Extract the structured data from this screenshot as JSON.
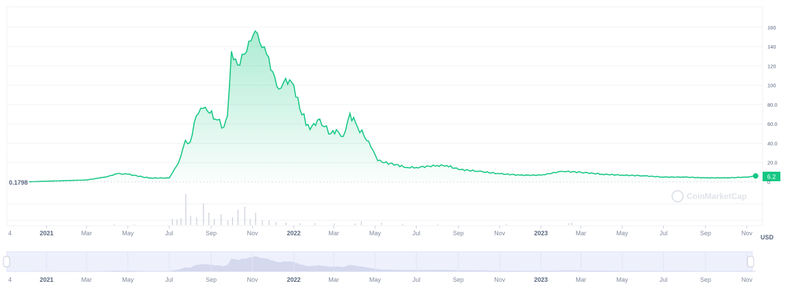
{
  "chart_data": {
    "type": "area",
    "currency_label": "USD",
    "watermark": "CoinMarketCap",
    "start_label": "0.1798",
    "current_value_label": "6.2",
    "ylim": [
      0,
      170
    ],
    "y_ticks": [
      "0",
      "20.0",
      "40.0",
      "60.0",
      "80.0",
      "100",
      "120",
      "140",
      "160"
    ],
    "y_tick_values": [
      0,
      20,
      40,
      60,
      80,
      100,
      120,
      140,
      160
    ],
    "x_ticks": [
      {
        "label": "4",
        "date": "2020-12-06",
        "bold": false
      },
      {
        "label": "2021",
        "date": "2021-01-01",
        "bold": true
      },
      {
        "label": "Mar",
        "date": "2021-03-01",
        "bold": false
      },
      {
        "label": "May",
        "date": "2021-05-01",
        "bold": false
      },
      {
        "label": "Jul",
        "date": "2021-07-01",
        "bold": false
      },
      {
        "label": "Sep",
        "date": "2021-09-01",
        "bold": false
      },
      {
        "label": "Nov",
        "date": "2021-11-01",
        "bold": false
      },
      {
        "label": "2022",
        "date": "2022-01-01",
        "bold": true
      },
      {
        "label": "Mar",
        "date": "2022-03-01",
        "bold": false
      },
      {
        "label": "May",
        "date": "2022-05-01",
        "bold": false
      },
      {
        "label": "Jul",
        "date": "2022-07-01",
        "bold": false
      },
      {
        "label": "Sep",
        "date": "2022-09-01",
        "bold": false
      },
      {
        "label": "Nov",
        "date": "2022-11-01",
        "bold": false
      },
      {
        "label": "2023",
        "date": "2023-01-01",
        "bold": true
      },
      {
        "label": "Mar",
        "date": "2023-03-01",
        "bold": false
      },
      {
        "label": "May",
        "date": "2023-05-01",
        "bold": false
      },
      {
        "label": "Jul",
        "date": "2023-07-01",
        "bold": false
      },
      {
        "label": "Sep",
        "date": "2023-09-01",
        "bold": false
      },
      {
        "label": "Nov",
        "date": "2023-11-01",
        "bold": false
      }
    ],
    "line_color": "#16c784",
    "volume_color": "#c9cdd8",
    "navigator_color": "#e9ecfb",
    "series": [
      {
        "dates": [
          "2020-12-06",
          "2021-03-01",
          "2021-04-01",
          "2021-04-15",
          "2021-05-01",
          "2021-06-01",
          "2021-07-01",
          "2021-07-15",
          "2021-07-25",
          "2021-08-01",
          "2021-08-10",
          "2021-08-20",
          "2021-08-30",
          "2021-09-10",
          "2021-09-20",
          "2021-09-25",
          "2021-10-01",
          "2021-10-10",
          "2021-10-20",
          "2021-10-30",
          "2021-11-05",
          "2021-11-15",
          "2021-11-22",
          "2021-12-01",
          "2021-12-10",
          "2021-12-20",
          "2022-01-01",
          "2022-01-10",
          "2022-01-25",
          "2022-02-05",
          "2022-02-15",
          "2022-02-25",
          "2022-03-05",
          "2022-03-15",
          "2022-03-25",
          "2022-04-05",
          "2022-04-15",
          "2022-04-25",
          "2022-05-05",
          "2022-05-15",
          "2022-06-01",
          "2022-06-15",
          "2022-07-01",
          "2022-08-01",
          "2022-08-15",
          "2022-09-01",
          "2022-10-01",
          "2022-11-01",
          "2022-12-01",
          "2023-01-01",
          "2023-02-01",
          "2023-03-01",
          "2023-04-01",
          "2023-05-01",
          "2023-06-01",
          "2023-07-01",
          "2023-08-01",
          "2023-09-01",
          "2023-10-01",
          "2023-11-01",
          "2023-11-14"
        ],
        "values": [
          0.18,
          2,
          5.5,
          8.5,
          8,
          4,
          4,
          20,
          43,
          41,
          68,
          76,
          71,
          64,
          57,
          68,
          135,
          121,
          132,
          146,
          156,
          139,
          132,
          114,
          96,
          107,
          100,
          75,
          54,
          64,
          57,
          50,
          54,
          47,
          71,
          57,
          47,
          36,
          22,
          20,
          18,
          15,
          15,
          17,
          17,
          13,
          11,
          8.5,
          7,
          7,
          11,
          10,
          8,
          7,
          6.4,
          5,
          5,
          4.2,
          4.2,
          5,
          6.2
        ]
      }
    ],
    "volume": {
      "dates": [
        "2021-04-10",
        "2021-05-10",
        "2021-07-05",
        "2021-07-12",
        "2021-07-18",
        "2021-07-25",
        "2021-08-01",
        "2021-08-10",
        "2021-08-20",
        "2021-08-28",
        "2021-09-05",
        "2021-09-15",
        "2021-09-25",
        "2021-10-02",
        "2021-10-10",
        "2021-10-20",
        "2021-10-28",
        "2021-11-05",
        "2021-11-15",
        "2021-11-25",
        "2021-12-05",
        "2021-12-20",
        "2022-01-10",
        "2022-02-01",
        "2022-03-01",
        "2022-04-01",
        "2022-04-10",
        "2022-05-10",
        "2022-06-10",
        "2022-08-01",
        "2022-11-10",
        "2023-02-10",
        "2023-02-15"
      ],
      "values": [
        3,
        2,
        20,
        18,
        22,
        100,
        30,
        25,
        70,
        40,
        20,
        35,
        15,
        25,
        50,
        60,
        20,
        40,
        15,
        15,
        10,
        8,
        6,
        6,
        5,
        5,
        12,
        8,
        4,
        3,
        3,
        6,
        8
      ]
    }
  }
}
